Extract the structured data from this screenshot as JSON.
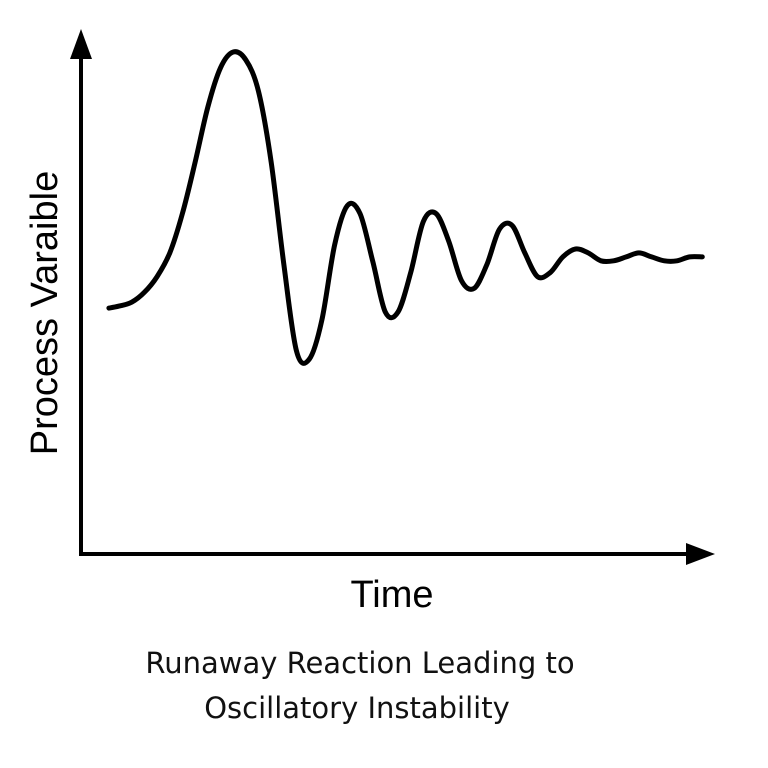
{
  "chart_data": {
    "type": "line",
    "title": "Runaway Reaction Leading to Oscillatory Instability",
    "title_lines": [
      "Runaway Reaction Leading to",
      "Oscillatory Instability"
    ],
    "xlabel": "Time",
    "ylabel": "Process Varaible",
    "grid": false,
    "legend": "none",
    "xlim": [
      0,
      100
    ],
    "ylim": [
      0,
      100
    ],
    "colors": {
      "line": "#000000",
      "axis": "#000000"
    },
    "series": [
      {
        "x": [
          4.4,
          6,
          8,
          10,
          12,
          14,
          16,
          18,
          20,
          22,
          24,
          26,
          28,
          30,
          32,
          34,
          36,
          38,
          40,
          42,
          44,
          46,
          48,
          50,
          52,
          54,
          56,
          58,
          60,
          62,
          64,
          66,
          68,
          70,
          72,
          74,
          76,
          78,
          80,
          82,
          84,
          86,
          88,
          90,
          92,
          94,
          96,
          98
        ],
        "y": [
          35,
          35.5,
          36.5,
          39,
          43,
          49,
          59,
          72,
          86,
          96,
          100,
          98,
          90,
          72,
          46,
          24,
          22,
          32,
          51,
          61,
          59,
          47,
          34,
          34,
          44,
          57,
          59,
          52,
          42,
          40,
          46,
          55,
          56,
          49,
          43,
          44,
          48,
          50,
          49,
          47,
          47,
          48,
          49,
          48,
          47,
          47,
          48,
          48
        ]
      }
    ]
  }
}
